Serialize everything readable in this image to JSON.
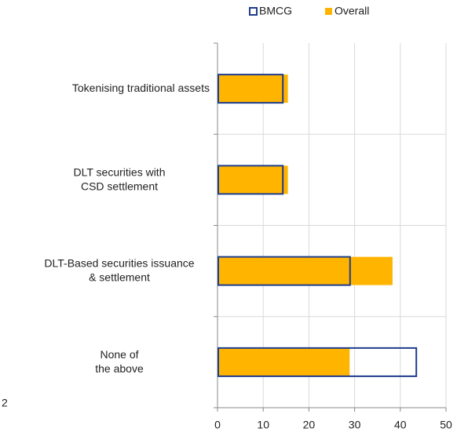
{
  "chart_data": {
    "type": "bar",
    "orientation": "horizontal",
    "categories": [
      "Tokenising traditional assets",
      "DLT securities with CSD settlement",
      "DLT-Based securities issuance & settlement",
      "None of the above"
    ],
    "series": [
      {
        "name": "BMCG",
        "color": "#1f3d8c",
        "style": "outline",
        "values": [
          14.3,
          14.3,
          29.0,
          43.5
        ]
      },
      {
        "name": "Overall",
        "color": "#ffb400",
        "style": "fill",
        "values": [
          15.4,
          15.4,
          38.3,
          28.9
        ]
      }
    ],
    "xlim": [
      0,
      50
    ],
    "xticks": [
      0,
      10,
      20,
      30,
      40,
      50
    ],
    "grid": true,
    "legend": "top",
    "note": "2"
  }
}
